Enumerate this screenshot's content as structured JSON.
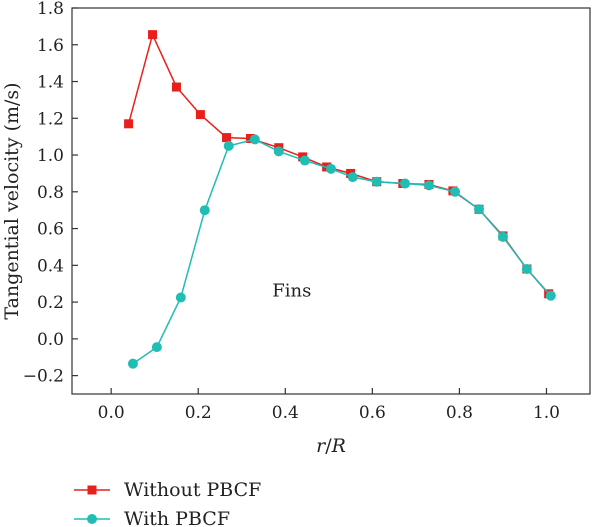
{
  "chart_data": {
    "type": "line",
    "xlabel_var": "r",
    "xlabel_sep": "/",
    "xlabel_den": "R",
    "ylabel": "Tangential velocity (m/s)",
    "xlim": [
      -0.09,
      1.1
    ],
    "ylim": [
      -0.3,
      1.8
    ],
    "xticks": [
      0.0,
      0.2,
      0.4,
      0.6,
      0.8,
      1.0
    ],
    "yticks": [
      -0.2,
      0.0,
      0.2,
      0.4,
      0.6,
      0.8,
      1.0,
      1.2,
      1.4,
      1.6,
      1.8
    ],
    "xtick_labels": [
      "0.0",
      "0.2",
      "0.4",
      "0.6",
      "0.8",
      "1.0"
    ],
    "ytick_labels": [
      "−0.2",
      "0.0",
      "0.2",
      "0.4",
      "0.6",
      "0.8",
      "1.0",
      "1.2",
      "1.4",
      "1.6",
      "1.8"
    ],
    "grid": false,
    "legend_position": "below",
    "annotations": [
      {
        "text": "Fins",
        "x": 0.37,
        "y": 0.23
      }
    ],
    "series": [
      {
        "name": "Without PBCF",
        "color": "#e8201c",
        "marker": "square",
        "x": [
          0.04,
          0.095,
          0.15,
          0.205,
          0.265,
          0.32,
          0.385,
          0.44,
          0.495,
          0.55,
          0.61,
          0.67,
          0.73,
          0.785,
          0.845,
          0.9,
          0.955,
          1.005
        ],
        "y": [
          1.17,
          1.655,
          1.37,
          1.22,
          1.095,
          1.09,
          1.04,
          0.99,
          0.935,
          0.9,
          0.855,
          0.845,
          0.84,
          0.805,
          0.705,
          0.56,
          0.38,
          0.245
        ]
      },
      {
        "name": "With PBCF",
        "color": "#1fbdb4",
        "marker": "circle",
        "x": [
          0.05,
          0.105,
          0.16,
          0.215,
          0.27,
          0.33,
          0.385,
          0.445,
          0.505,
          0.555,
          0.61,
          0.675,
          0.73,
          0.79,
          0.845,
          0.9,
          0.955,
          1.01
        ],
        "y": [
          -0.135,
          -0.045,
          0.225,
          0.7,
          1.05,
          1.085,
          1.02,
          0.97,
          0.925,
          0.88,
          0.855,
          0.845,
          0.835,
          0.8,
          0.705,
          0.555,
          0.38,
          0.235
        ]
      }
    ]
  }
}
